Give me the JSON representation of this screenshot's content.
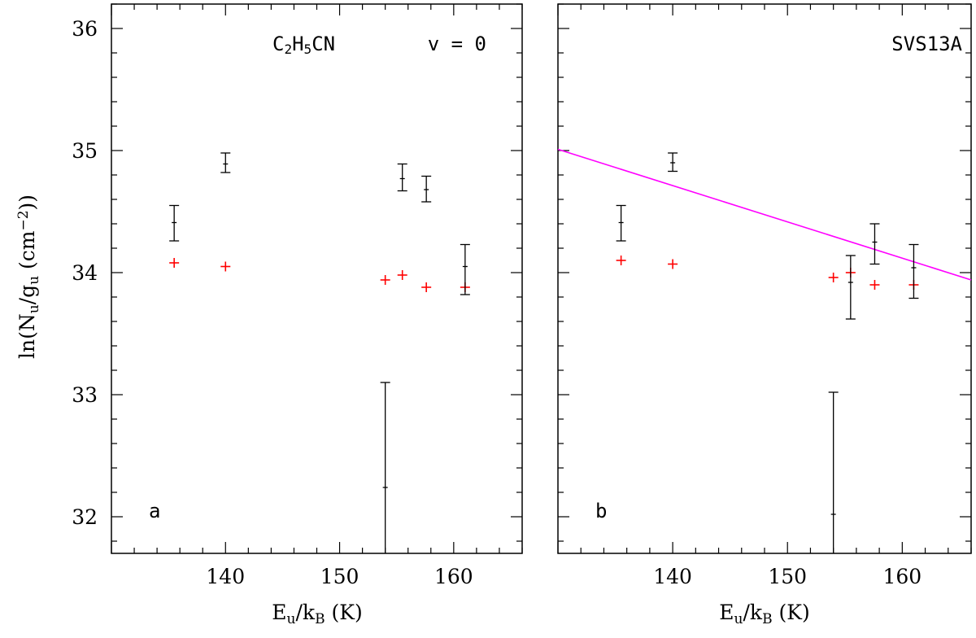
{
  "chart_data": {
    "type": "scatter",
    "xlim": [
      130,
      166
    ],
    "ylim": [
      31.7,
      36.2
    ],
    "xticks": [
      140,
      150,
      160
    ],
    "yticks": [
      32,
      33,
      34,
      35,
      36
    ],
    "xlabel": {
      "main": "E",
      "sub1": "u",
      "mid": "/k",
      "sub2": "B",
      "unit": " (K)"
    },
    "ylabel": {
      "pre": "ln(N",
      "sub1": "u",
      "mid": "/g",
      "sub2": "u",
      "post": " (cm",
      "sup": "−2",
      "end": "))"
    },
    "colors": {
      "observed": "#000000",
      "model": "#ff0000",
      "fit": "#ff00ff"
    },
    "panels": [
      {
        "label": "a",
        "title": {
          "pre": "C",
          "s1": "2",
          "mid": "H",
          "s2": "5",
          "post": "CN",
          "state": "v = 0"
        },
        "observed": [
          {
            "x": 135.5,
            "y": 34.41,
            "yerr_lo": 0.15,
            "yerr_hi": 0.14
          },
          {
            "x": 140.0,
            "y": 34.89,
            "yerr_lo": 0.07,
            "yerr_hi": 0.09
          },
          {
            "x": 155.5,
            "y": 34.77,
            "yerr_lo": 0.1,
            "yerr_hi": 0.12
          },
          {
            "x": 157.6,
            "y": 34.68,
            "yerr_lo": 0.1,
            "yerr_hi": 0.11
          },
          {
            "x": 161.0,
            "y": 34.05,
            "yerr_lo": 0.23,
            "yerr_hi": 0.18
          },
          {
            "x": 154.0,
            "y": 32.24,
            "yerr_lo": 0.6,
            "yerr_hi": 0.86
          }
        ],
        "model": [
          {
            "x": 135.5,
            "y": 34.08
          },
          {
            "x": 140.0,
            "y": 34.05
          },
          {
            "x": 154.0,
            "y": 33.94
          },
          {
            "x": 155.5,
            "y": 33.98
          },
          {
            "x": 157.6,
            "y": 33.88
          },
          {
            "x": 161.0,
            "y": 33.88
          }
        ]
      },
      {
        "label": "b",
        "title": {
          "source": "SVS13A"
        },
        "observed": [
          {
            "x": 135.5,
            "y": 34.41,
            "yerr_lo": 0.15,
            "yerr_hi": 0.14
          },
          {
            "x": 140.0,
            "y": 34.9,
            "yerr_lo": 0.07,
            "yerr_hi": 0.08
          },
          {
            "x": 155.5,
            "y": 33.92,
            "yerr_lo": 0.3,
            "yerr_hi": 0.22
          },
          {
            "x": 157.6,
            "y": 34.25,
            "yerr_lo": 0.18,
            "yerr_hi": 0.15
          },
          {
            "x": 161.0,
            "y": 34.04,
            "yerr_lo": 0.25,
            "yerr_hi": 0.19
          },
          {
            "x": 154.0,
            "y": 32.02,
            "yerr_lo": 0.5,
            "yerr_hi": 1.0
          }
        ],
        "model": [
          {
            "x": 135.5,
            "y": 34.1
          },
          {
            "x": 140.0,
            "y": 34.07
          },
          {
            "x": 154.0,
            "y": 33.96
          },
          {
            "x": 155.5,
            "y": 34.0
          },
          {
            "x": 157.6,
            "y": 33.9
          },
          {
            "x": 161.0,
            "y": 33.9
          }
        ],
        "fit": {
          "x": [
            130,
            166
          ],
          "y": [
            35.01,
            33.94
          ]
        }
      }
    ]
  }
}
